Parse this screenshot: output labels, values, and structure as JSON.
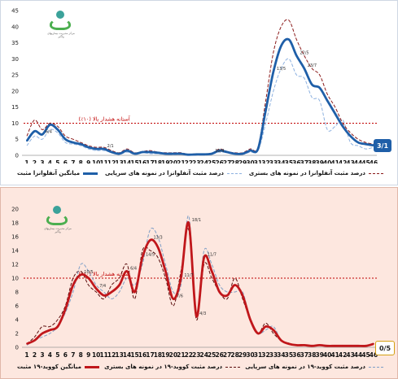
{
  "charts": [
    {
      "id": "influenza",
      "type": "line",
      "x": [
        1,
        2,
        3,
        4,
        5,
        6,
        7,
        8,
        9,
        10,
        11,
        12,
        13,
        14,
        15,
        16,
        17,
        18,
        19,
        20,
        21,
        22,
        23,
        24,
        25,
        26,
        27,
        28,
        29,
        30,
        31,
        32,
        33,
        34,
        35,
        36,
        37,
        38,
        39,
        40,
        41,
        42,
        43,
        44,
        45,
        46
      ],
      "ylim": [
        0,
        45
      ],
      "yticks": [
        0,
        5,
        10,
        15,
        20,
        25,
        30,
        35,
        40,
        45
      ],
      "threshold": 10,
      "threshold_label": "آستانه هشدار بالا (۱۰٪)",
      "current_value_label": "3/1",
      "legend": [
        "میانگین آنفلوانزا مثبت",
        "درصد مثبت آنفلوانزا در نمونه های سرپایی",
        "درصد مثبت آنفلوانزا در نمونه های بستری"
      ],
      "point_labels": [
        {
          "x": 25,
          "text": "10/4"
        },
        {
          "x": 36,
          "text": "22/5"
        },
        {
          "x": 37,
          "text": "23/7"
        },
        {
          "x": 3,
          "text": "6/4"
        },
        {
          "x": 11,
          "text": "2/1"
        },
        {
          "x": 33,
          "text": "13/5"
        }
      ],
      "series": [
        {
          "name": "میانگین آنفلوانزا مثبت",
          "style": "solid-thick",
          "color": "#1f5fa8",
          "values": [
            4.5,
            7.5,
            6.5,
            9.5,
            8,
            5,
            4,
            3.5,
            2.5,
            2,
            2,
            1,
            0.5,
            1.5,
            0.5,
            1,
            1,
            0.8,
            0.5,
            0.5,
            0.5,
            0.2,
            0.3,
            0.3,
            0.5,
            1.5,
            1,
            0.5,
            0.5,
            1.5,
            2,
            14,
            26,
            34,
            36,
            31,
            27,
            22,
            21,
            17,
            13,
            9,
            6,
            4,
            3.5,
            3.1
          ]
        },
        {
          "name": "درصد مثبت آنفلوانزا در نمونه های سرپایی",
          "style": "dashed",
          "color": "#8db1e0",
          "values": [
            3,
            6,
            5,
            8,
            7,
            4,
            3.5,
            3,
            2,
            1.5,
            1.5,
            0.8,
            0.3,
            1,
            0.3,
            0.8,
            0.5,
            0.5,
            0.3,
            0.2,
            0.3,
            0.1,
            0.2,
            0.2,
            0.4,
            1,
            0.8,
            0.4,
            0.3,
            1,
            1.5,
            10,
            20,
            27,
            30,
            25,
            24,
            18,
            17,
            8,
            9,
            11,
            4,
            3,
            2,
            2.5
          ]
        },
        {
          "name": "درصد مثبت آنفلوانزا در نمونه های بستری",
          "style": "dashed",
          "color": "#8b1a1a",
          "values": [
            6,
            11,
            8,
            10,
            9,
            6,
            5,
            4,
            3,
            2.5,
            2.5,
            1.5,
            0.8,
            2,
            0.8,
            1.2,
            1.5,
            1,
            0.8,
            0.8,
            0.8,
            0.3,
            0.5,
            0.4,
            0.6,
            2,
            1.2,
            0.8,
            0.8,
            2,
            2.5,
            17,
            32,
            40,
            42,
            36,
            31,
            27,
            25,
            19,
            15,
            10,
            7,
            5,
            4,
            3.5
          ]
        }
      ]
    },
    {
      "id": "covid",
      "type": "line",
      "x": [
        1,
        2,
        3,
        4,
        5,
        6,
        7,
        8,
        9,
        10,
        11,
        12,
        13,
        14,
        15,
        16,
        17,
        18,
        19,
        20,
        21,
        22,
        23,
        24,
        25,
        26,
        27,
        28,
        29,
        30,
        31,
        32,
        33,
        34,
        35,
        36,
        37,
        38,
        39,
        40,
        41,
        42,
        43,
        44,
        45,
        46
      ],
      "ylim": [
        0,
        20
      ],
      "yticks": [
        0,
        2,
        4,
        6,
        8,
        10,
        12,
        14,
        16,
        18,
        20
      ],
      "threshold": 10,
      "threshold_label": "آستانه هشدار بالا (۱۰٪)",
      "current_value_label": "0/5",
      "legend": [
        "میانگین کووید-۱۹ مثبت",
        "درصد مثبت کووید-۱۹ در نمونه های بستری",
        "درصد مثبت کووید-۱۹ در نمونه های سرپایی"
      ],
      "point_labels": [
        {
          "x": 8,
          "text": "10/5"
        },
        {
          "x": 16,
          "text": "14/5"
        },
        {
          "x": 17,
          "text": "13/3"
        },
        {
          "x": 21,
          "text": "11/7"
        },
        {
          "x": 20,
          "text": "7/6"
        },
        {
          "x": 23,
          "text": "4/3"
        },
        {
          "x": 24,
          "text": "11/7"
        },
        {
          "x": 22,
          "text": "18/1"
        },
        {
          "x": 10,
          "text": "7/4"
        },
        {
          "x": 14,
          "text": "6/4"
        }
      ],
      "series": [
        {
          "name": "میانگین کووید-۱۹ مثبت",
          "style": "solid-thick",
          "color": "#c0171b",
          "values": [
            0.5,
            1,
            2,
            2.5,
            3,
            5.5,
            9,
            10.5,
            10,
            8.5,
            7.5,
            8,
            9,
            11,
            8,
            13,
            15.5,
            14.5,
            11,
            7,
            10,
            18,
            4.5,
            13,
            11,
            8,
            7.5,
            9,
            7.5,
            4,
            2,
            3,
            2.5,
            1,
            0.5,
            0.3,
            0.3,
            0.2,
            0.3,
            0.2,
            0.2,
            0.2,
            0.2,
            0.2,
            0.2,
            0.5
          ]
        },
        {
          "name": "درصد مثبت کووید-۱۹ در نمونه های بستری",
          "style": "dashed",
          "color": "#5a0c0c",
          "values": [
            0.5,
            1.5,
            3,
            3,
            4,
            6,
            10,
            11,
            9,
            8,
            7,
            9,
            10,
            12,
            7,
            14,
            14,
            13,
            10,
            6,
            11,
            17,
            4,
            12,
            10,
            8,
            7,
            10,
            7,
            4,
            2,
            3.5,
            2,
            1,
            0.6,
            0.3,
            0.3,
            0.2,
            0.3,
            0.2,
            0.2,
            0.2,
            0.2,
            0.2,
            0.2,
            0.4
          ]
        },
        {
          "name": "درصد مثبت کووید-۱۹ در نمونه های سرپایی",
          "style": "dashed",
          "color": "#7f9fc7",
          "values": [
            0.3,
            1,
            1.5,
            2,
            3,
            5,
            8,
            12,
            11,
            9,
            8,
            7,
            8,
            10,
            9,
            12,
            17,
            16,
            12,
            8,
            9,
            19,
            5,
            14,
            12,
            9,
            8,
            8,
            8,
            4,
            2,
            2.5,
            3,
            1,
            0.5,
            0.3,
            0.3,
            0.2,
            0.3,
            0.2,
            0.2,
            0.2,
            0.2,
            0.2,
            0.2,
            0.6
          ]
        }
      ]
    }
  ]
}
